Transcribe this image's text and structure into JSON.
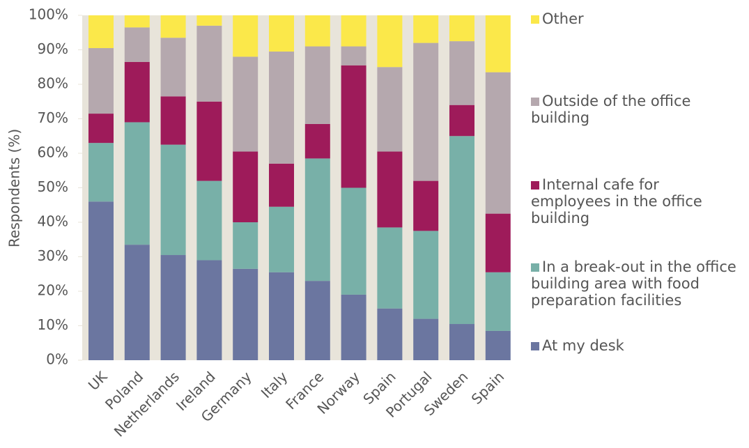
{
  "chart_data": {
    "type": "stacked-bar",
    "y_label": "Respondents (%)",
    "categories": [
      "UK",
      "Poland",
      "Netherlands",
      "Ireland",
      "Germany",
      "Italy",
      "France",
      "Norway",
      "Spain",
      "Portugal",
      "Sweden",
      "Spain"
    ],
    "series": [
      {
        "name": "At my desk",
        "color": "#6b76a0",
        "values": [
          46,
          33.5,
          30.5,
          29,
          26.5,
          25.5,
          23,
          19,
          15,
          12,
          10.5,
          8.5
        ]
      },
      {
        "name": "In a break-out in the office building area with food preparation facilities",
        "color": "#78b0a8",
        "values": [
          17,
          35.5,
          32,
          23,
          13.5,
          19,
          35.5,
          31,
          23.5,
          25.5,
          54.5,
          17
        ]
      },
      {
        "name": "Internal cafe for employees in the office building",
        "color": "#9e1b5a",
        "values": [
          8.5,
          17.5,
          14,
          23,
          20.5,
          12.5,
          10,
          35.5,
          22,
          14.5,
          9,
          17
        ]
      },
      {
        "name": "Outside of the office building",
        "color": "#b5a8ae",
        "values": [
          19,
          10,
          17,
          22,
          27.5,
          32.5,
          22.5,
          5.5,
          24.5,
          40,
          18.5,
          41
        ]
      },
      {
        "name": "Other",
        "color": "#fbe84a",
        "values": [
          9.5,
          3.5,
          6.5,
          3,
          12,
          10.5,
          9,
          9,
          15,
          8,
          7.5,
          16.5
        ]
      }
    ],
    "ylim": [
      0,
      100
    ],
    "yticks": [
      {
        "value": 0,
        "label": "0%"
      },
      {
        "value": 10,
        "label": "10%"
      },
      {
        "value": 20,
        "label": "20%"
      },
      {
        "value": 30,
        "label": "30%"
      },
      {
        "value": 40,
        "label": "40%"
      },
      {
        "value": 50,
        "label": "50%"
      },
      {
        "value": 60,
        "label": "60%"
      },
      {
        "value": 70,
        "label": "70%"
      },
      {
        "value": 80,
        "label": "80%"
      },
      {
        "value": 90,
        "label": "90%"
      },
      {
        "value": 100,
        "label": "100%"
      }
    ]
  }
}
